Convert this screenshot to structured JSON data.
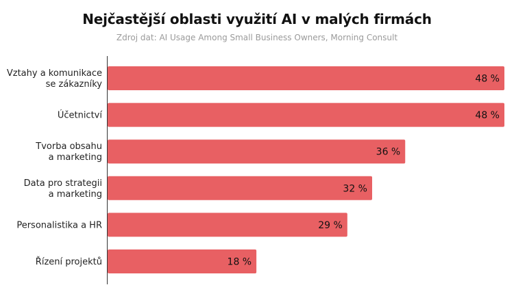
{
  "title": "Nejčastější oblasti využití AI v malých firmách",
  "subtitle": "Zdroj dat: AI Usage Among Small Business Owners, Morning Consult",
  "colors": {
    "bar": "#e86063",
    "axis": "#333333"
  },
  "chart_data": {
    "type": "bar",
    "orientation": "horizontal",
    "title": "Nejčastější oblasti využití AI v malých firmách",
    "subtitle": "Zdroj dat: AI Usage Among Small Business Owners, Morning Consult",
    "xlabel": "",
    "ylabel": "",
    "categories": [
      [
        "Vztahy a komunikace",
        "se zákazníky"
      ],
      [
        "Účetnictví"
      ],
      [
        "Tvorba obsahu",
        "a marketing"
      ],
      [
        "Data pro strategii",
        "a marketing"
      ],
      [
        "Personalistika a HR"
      ],
      [
        "Řízení projektů"
      ]
    ],
    "values": [
      48,
      48,
      36,
      32,
      29,
      18
    ],
    "value_labels": [
      "48 %",
      "48 %",
      "36 %",
      "32 %",
      "29 %",
      "18 %"
    ],
    "unit": "%",
    "xlim": [
      0,
      48
    ],
    "grid": false,
    "legend": "none"
  }
}
